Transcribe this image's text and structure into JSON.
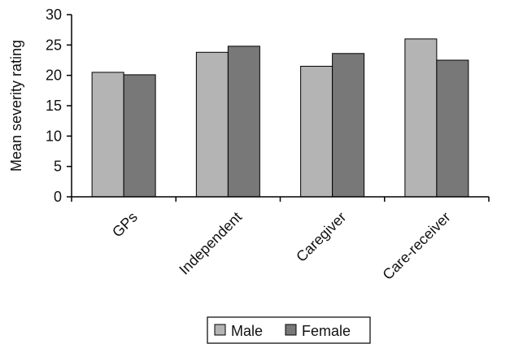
{
  "chart_data": {
    "type": "bar",
    "categories": [
      "GPs",
      "Independent",
      "Caregiver",
      "Care-receiver"
    ],
    "series": [
      {
        "name": "Male",
        "values": [
          20.5,
          23.8,
          21.5,
          26.0
        ],
        "color": "#b4b4b4"
      },
      {
        "name": "Female",
        "values": [
          20.1,
          24.8,
          23.6,
          22.5
        ],
        "color": "#787878"
      }
    ],
    "ylabel": "Mean severity rating",
    "xlabel": "",
    "ylim": [
      0,
      30
    ],
    "yticks": [
      0,
      5,
      10,
      15,
      20,
      25,
      30
    ],
    "grid": false,
    "legend_position": "bottom"
  }
}
